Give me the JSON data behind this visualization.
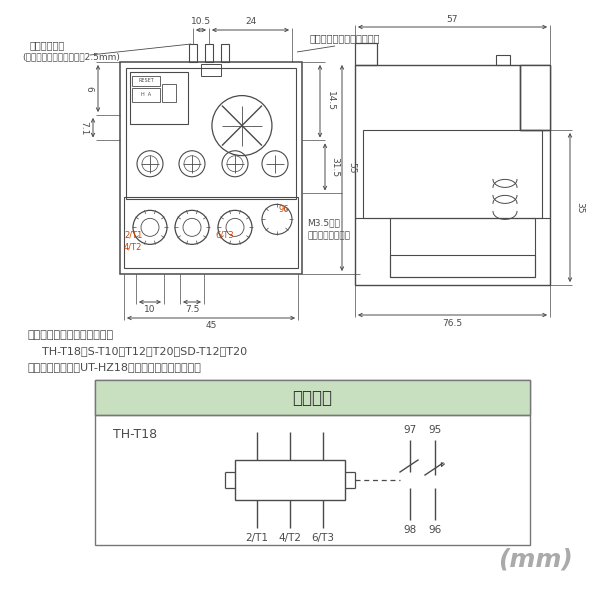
{
  "bg_color": "#ffffff",
  "line_color": "#4a4a4a",
  "dim_color": "#4a4a4a",
  "green_header": "#c8dfc0",
  "table_border": "#888888",
  "text_color": "#333333",
  "title_text": "接点構成",
  "model_text": "TH-T18",
  "note_line1": "下記電磁接触器との組合せ用",
  "note_line2": "    TH-T18：S-T10、T12、T20　SD-T12、T20",
  "note_line3": "単体取付ユニットUT-HZ18と組合せて単体使用可能",
  "mm_text": "(mm)",
  "label_reset": "リセットバー",
  "label_reset2": "(リセットバーストローク2.5mm)",
  "label_dousa": "動作表示（手動トリップ）",
  "label_m35": "M3.5ねじ",
  "label_self": "（セルフアップ）",
  "dim_10_5": "10.5",
  "dim_24": "24",
  "dim_14_5": "14.5",
  "dim_55": "55",
  "dim_31_5": "31.5",
  "dim_6": "6",
  "dim_7_1": "7.1",
  "dim_10": "10",
  "dim_7_5": "7.5",
  "dim_45": "45",
  "dim_57": "57",
  "dim_35": "35",
  "dim_76_5": "76.5",
  "contact_labels_top": [
    "97",
    "95"
  ],
  "contact_labels_bot": [
    "98",
    "96"
  ],
  "contact_3p_labels": [
    "2/T1",
    "4/T2",
    "6/T3"
  ],
  "label_2T1": "2/T1",
  "label_4T2": "4/T2",
  "label_6T3": "6/T3",
  "label_96": "96"
}
